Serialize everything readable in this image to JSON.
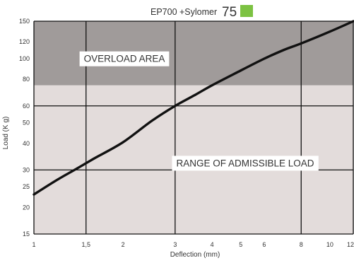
{
  "colors": {
    "overload_fill": "#a09b9a",
    "admissible_fill": "#e3dcdb",
    "grid": "#111111",
    "curve": "#111111",
    "legend_swatch": "#7cc242"
  },
  "chart_data": {
    "type": "line",
    "title": {
      "prefix": "EP700  +Sylomer",
      "number": "75"
    },
    "xlabel": "Deflection (mm)",
    "ylabel": "Load (K g)",
    "xscale": "log",
    "yscale": "log",
    "xlim": [
      1,
      12
    ],
    "ylim": [
      15,
      150
    ],
    "x_ticks": [
      {
        "value": 1,
        "label": "1"
      },
      {
        "value": 1.5,
        "label": "1,5"
      },
      {
        "value": 2,
        "label": "2"
      },
      {
        "value": 3,
        "label": "3"
      },
      {
        "value": 4,
        "label": "4"
      },
      {
        "value": 5,
        "label": "5"
      },
      {
        "value": 6,
        "label": "6"
      },
      {
        "value": 8,
        "label": "8"
      },
      {
        "value": 10,
        "label": "10"
      },
      {
        "value": 12,
        "label": "12"
      }
    ],
    "y_ticks": [
      {
        "value": 15,
        "label": "15"
      },
      {
        "value": 20,
        "label": "20"
      },
      {
        "value": 25,
        "label": "25"
      },
      {
        "value": 30,
        "label": "30"
      },
      {
        "value": 40,
        "label": "40"
      },
      {
        "value": 50,
        "label": "50"
      },
      {
        "value": 60,
        "label": "60"
      },
      {
        "value": 80,
        "label": "80"
      },
      {
        "value": 100,
        "label": "100"
      },
      {
        "value": 120,
        "label": "120"
      },
      {
        "value": 150,
        "label": "150"
      }
    ],
    "x_grid": [
      1,
      1.5,
      3,
      8,
      12
    ],
    "y_grid": [
      15,
      30,
      60,
      150
    ],
    "regions": [
      {
        "name": "overload",
        "label": "OVERLOAD AREA",
        "y_from": 75,
        "y_to": 150
      },
      {
        "name": "admissible",
        "label": "RANGE OF ADMISSIBLE LOAD",
        "y_from": 15,
        "y_to": 75
      }
    ],
    "series": [
      {
        "x": [
          1,
          1.2,
          1.4,
          1.6,
          2,
          2.5,
          3,
          3.5,
          4,
          5,
          6,
          7,
          8,
          10,
          12
        ],
        "y": [
          23,
          27,
          30.5,
          34,
          40.5,
          51,
          60,
          67.5,
          75,
          88,
          100,
          110,
          118,
          134,
          150
        ]
      }
    ]
  }
}
